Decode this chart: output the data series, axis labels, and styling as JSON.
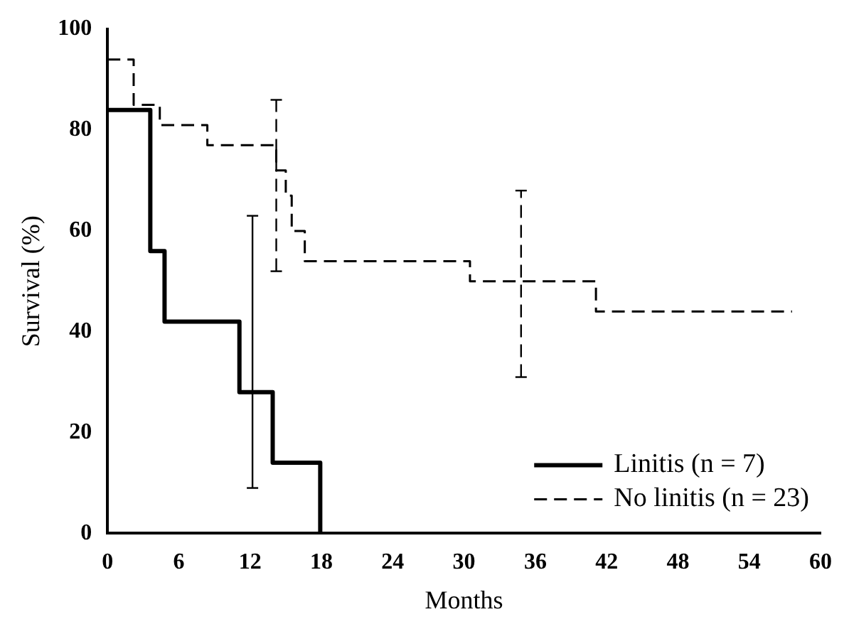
{
  "chart_data": {
    "type": "step",
    "xlabel": "Months",
    "ylabel": "Survival (%)",
    "xlim": [
      0,
      60
    ],
    "xticks": [
      0,
      6,
      12,
      18,
      24,
      30,
      36,
      42,
      48,
      54,
      60
    ],
    "ylim": [
      0,
      100
    ],
    "yticks": [
      0,
      20,
      40,
      60,
      80,
      100
    ],
    "legend": "bottom right",
    "series": [
      {
        "name": "Linitis (n = 7)",
        "color": "#000000",
        "line_style": "solid",
        "x": [
          0,
          3.6,
          4.8,
          11.1,
          12.2,
          13.9,
          17.9
        ],
        "values": [
          84,
          56,
          42,
          28,
          28,
          14,
          0
        ],
        "errors": [
          null,
          null,
          null,
          null,
          [
            9,
            63
          ],
          null,
          null
        ]
      },
      {
        "name": "No linitis (n = 23)",
        "color": "#000000",
        "line_style": "dashed",
        "x": [
          0,
          2.2,
          4.4,
          8.4,
          14.2,
          15,
          15.5,
          16.6,
          30.5,
          34.8,
          41.1,
          57.6
        ],
        "values": [
          94,
          85,
          81,
          77,
          72,
          67,
          60,
          54,
          50,
          50,
          44,
          44
        ],
        "errors": [
          null,
          null,
          null,
          null,
          [
            52,
            86
          ],
          null,
          null,
          null,
          null,
          [
            31,
            68
          ],
          null,
          null
        ]
      }
    ]
  }
}
